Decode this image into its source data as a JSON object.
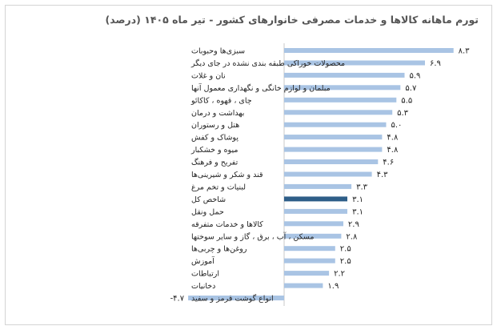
{
  "chart_data": {
    "type": "bar",
    "orientation": "horizontal",
    "title": "تورم ماهانه کالاها و خدمات مصرفی خانوارهای کشور - تیر ماه ۱۴۰۵ (درصد)",
    "categories": [
      "سبزی‌ها وحبوبات",
      "محصولات خوراکی طبقه بندی نشده در جای دیگر",
      "نان و غلات",
      "مبلمان و لوازم خانگی و نگهداری معمول آنها",
      "چای ، قهوه ، کاکائو",
      "بهداشت و درمان",
      "هتل و رستوران",
      "پوشاک و کفش",
      "میوه و خشکبار",
      "تفریح و فرهنگ",
      "قند و شکر و شیرینی‌ها",
      "لبنیات و تخم مرغ",
      "شاخص کل",
      "حمل ونقل",
      "کالاها و خدمات متفرقه",
      "مسکن ، آب ، برق ، گاز و سایر سوختها",
      "روغن‌ها و چربی‌ها",
      "آموزش",
      "ارتباطات",
      "دخانیات",
      "انواع گوشت قرمز و سفید"
    ],
    "values": [
      8.3,
      6.9,
      5.9,
      5.7,
      5.5,
      5.3,
      5.0,
      4.8,
      4.8,
      4.6,
      4.3,
      3.3,
      3.1,
      3.1,
      2.9,
      2.8,
      2.5,
      2.5,
      2.2,
      1.9,
      -4.7
    ],
    "value_labels": [
      "۸.۳",
      "۶.۹",
      "۵.۹",
      "۵.۷",
      "۵.۵",
      "۵.۳",
      "۵.۰",
      "۴.۸",
      "۴.۸",
      "۴.۶",
      "۴.۳",
      "۳.۳",
      "۳.۱",
      "۳.۱",
      "۲.۹",
      "۲.۸",
      "۲.۵",
      "۲.۵",
      "۲.۲",
      "۱.۹",
      "-۴.۷"
    ],
    "highlight_category": "شاخص کل",
    "xlim": [
      -5,
      9
    ],
    "grid": false,
    "legend": "none"
  },
  "colors": {
    "bar": "#a9c4e4",
    "bar_highlight": "#2e5e88",
    "axis": "#c8c8c8",
    "text": "#222222",
    "title": "#555555"
  }
}
